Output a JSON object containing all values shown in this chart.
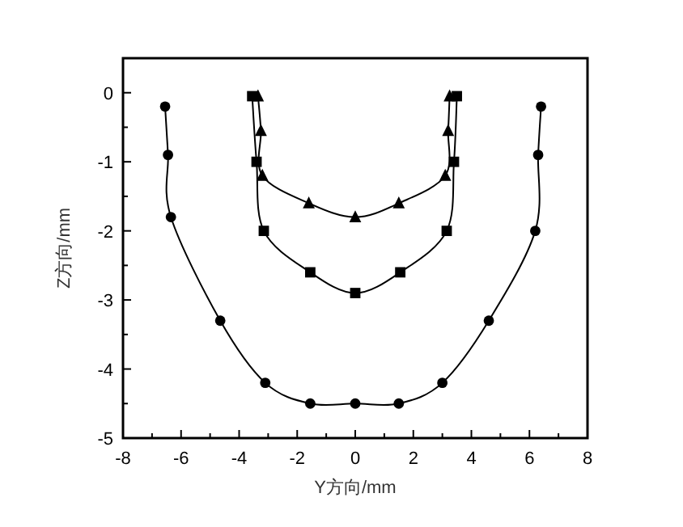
{
  "chart_data": {
    "type": "line",
    "xlabel": "Y方向/mm",
    "ylabel": "Z方向/mm",
    "xlim": [
      -8,
      8
    ],
    "ylim": [
      -5,
      0.5
    ],
    "xticks": [
      -8,
      {
        "value": -7,
        "label": null
      },
      -6,
      {
        "value": -5,
        "label": null
      },
      -4,
      {
        "value": -3,
        "label": null
      },
      -2,
      {
        "value": -1,
        "label": null
      },
      0,
      {
        "value": 1,
        "label": null
      },
      2,
      {
        "value": 3,
        "label": null
      },
      4,
      {
        "value": 5,
        "label": null
      },
      6,
      {
        "value": 7,
        "label": null
      },
      8
    ],
    "yticks": [
      -5,
      {
        "value": -4.5,
        "label": null
      },
      -4,
      {
        "value": -3.5,
        "label": null
      },
      -3,
      {
        "value": -2.5,
        "label": null
      },
      -2,
      {
        "value": -1.5,
        "label": null
      },
      -1,
      {
        "value": -0.5,
        "label": null
      },
      0
    ],
    "grid": false,
    "line_style": "solid",
    "series": [
      {
        "color": "#000000",
        "marker": "circle",
        "x": [
          -6.55,
          -6.45,
          -6.35,
          -4.65,
          -3.1,
          -1.55,
          0,
          1.5,
          3.0,
          4.6,
          6.2,
          6.3,
          6.4
        ],
        "values": [
          -0.2,
          -0.9,
          -1.8,
          -3.3,
          -4.2,
          -4.5,
          -4.5,
          -4.5,
          -4.2,
          -3.3,
          -2.0,
          -0.9,
          -0.2
        ]
      },
      {
        "color": "#000000",
        "marker": "square",
        "x": [
          -3.55,
          -3.4,
          -3.15,
          -1.55,
          0,
          1.55,
          3.15,
          3.4,
          3.5
        ],
        "values": [
          -0.05,
          -1.0,
          -2.0,
          -2.6,
          -2.9,
          -2.6,
          -2.0,
          -1.0,
          -0.05
        ]
      },
      {
        "color": "#000000",
        "marker": "triangle",
        "x": [
          -3.35,
          -3.25,
          -3.2,
          -1.6,
          0,
          1.5,
          3.1,
          3.2,
          3.25
        ],
        "values": [
          -0.05,
          -0.55,
          -1.2,
          -1.6,
          -1.8,
          -1.6,
          -1.2,
          -0.55,
          -0.05
        ]
      }
    ]
  }
}
